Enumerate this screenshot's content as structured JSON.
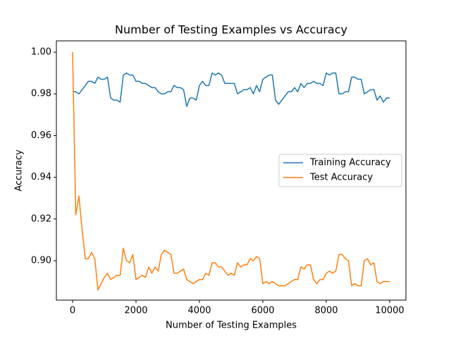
{
  "chart_data": {
    "type": "line",
    "title": "Number of Testing Examples vs Accuracy",
    "xlabel": "Number of Testing Examples",
    "ylabel": "Accuracy",
    "x": [
      0,
      100,
      200,
      300,
      400,
      500,
      600,
      700,
      800,
      900,
      1000,
      1100,
      1200,
      1300,
      1400,
      1500,
      1600,
      1700,
      1800,
      1900,
      2000,
      2100,
      2200,
      2300,
      2400,
      2500,
      2600,
      2700,
      2800,
      2900,
      3000,
      3100,
      3200,
      3300,
      3400,
      3500,
      3600,
      3700,
      3800,
      3900,
      4000,
      4100,
      4200,
      4300,
      4400,
      4500,
      4600,
      4700,
      4800,
      4900,
      5000,
      5100,
      5200,
      5300,
      5400,
      5500,
      5600,
      5700,
      5800,
      5900,
      6000,
      6100,
      6200,
      6300,
      6400,
      6500,
      6600,
      6700,
      6800,
      6900,
      7000,
      7100,
      7200,
      7300,
      7400,
      7500,
      7600,
      7700,
      7800,
      7900,
      8000,
      8100,
      8200,
      8300,
      8400,
      8500,
      8600,
      8700,
      8800,
      8900,
      9000,
      9100,
      9200,
      9300,
      9400,
      9500,
      9600,
      9700,
      9800,
      9900,
      10000
    ],
    "series": [
      {
        "name": "Training Accuracy",
        "color": "#1f77b4",
        "values": [
          0.981,
          0.981,
          0.98,
          0.982,
          0.984,
          0.986,
          0.986,
          0.985,
          0.988,
          0.987,
          0.987,
          0.988,
          0.978,
          0.977,
          0.977,
          0.976,
          0.989,
          0.99,
          0.989,
          0.989,
          0.986,
          0.986,
          0.985,
          0.985,
          0.984,
          0.983,
          0.983,
          0.981,
          0.98,
          0.98,
          0.981,
          0.981,
          0.984,
          0.983,
          0.983,
          0.982,
          0.974,
          0.978,
          0.978,
          0.977,
          0.984,
          0.986,
          0.984,
          0.984,
          0.99,
          0.989,
          0.99,
          0.989,
          0.985,
          0.985,
          0.985,
          0.985,
          0.98,
          0.981,
          0.982,
          0.982,
          0.983,
          0.98,
          0.984,
          0.981,
          0.987,
          0.988,
          0.989,
          0.989,
          0.977,
          0.975,
          0.977,
          0.979,
          0.981,
          0.981,
          0.983,
          0.981,
          0.985,
          0.983,
          0.985,
          0.985,
          0.986,
          0.985,
          0.985,
          0.984,
          0.99,
          0.989,
          0.99,
          0.99,
          0.98,
          0.98,
          0.981,
          0.981,
          0.988,
          0.988,
          0.987,
          0.987,
          0.98,
          0.981,
          0.982,
          0.982,
          0.977,
          0.979,
          0.976,
          0.978,
          0.978
        ]
      },
      {
        "name": "Test Accuracy",
        "color": "#ff7f0e",
        "values": [
          1.0,
          0.922,
          0.931,
          0.915,
          0.901,
          0.901,
          0.904,
          0.901,
          0.886,
          0.889,
          0.892,
          0.894,
          0.891,
          0.892,
          0.893,
          0.893,
          0.906,
          0.9,
          0.899,
          0.903,
          0.891,
          0.892,
          0.893,
          0.892,
          0.897,
          0.894,
          0.897,
          0.895,
          0.903,
          0.905,
          0.904,
          0.903,
          0.894,
          0.894,
          0.895,
          0.896,
          0.891,
          0.89,
          0.889,
          0.89,
          0.891,
          0.891,
          0.894,
          0.893,
          0.899,
          0.899,
          0.897,
          0.897,
          0.895,
          0.893,
          0.894,
          0.893,
          0.899,
          0.897,
          0.898,
          0.898,
          0.901,
          0.9,
          0.902,
          0.901,
          0.889,
          0.89,
          0.889,
          0.89,
          0.889,
          0.888,
          0.888,
          0.888,
          0.889,
          0.89,
          0.891,
          0.891,
          0.897,
          0.896,
          0.898,
          0.898,
          0.891,
          0.889,
          0.891,
          0.891,
          0.894,
          0.895,
          0.894,
          0.895,
          0.903,
          0.903,
          0.901,
          0.9,
          0.888,
          0.889,
          0.888,
          0.888,
          0.9,
          0.901,
          0.898,
          0.899,
          0.89,
          0.889,
          0.89,
          0.89,
          0.89
        ]
      }
    ],
    "xlim": [
      -511,
      10511
    ],
    "ylim": [
      0.8811,
      1.0054
    ],
    "xticks": [
      0,
      2000,
      4000,
      6000,
      8000,
      10000
    ],
    "yticks": [
      {
        "value": 0.9,
        "label": "0.90"
      },
      0.92,
      0.94,
      0.96,
      0.98,
      {
        "value": 1.0,
        "label": "1.00"
      }
    ],
    "legend": "center right"
  }
}
